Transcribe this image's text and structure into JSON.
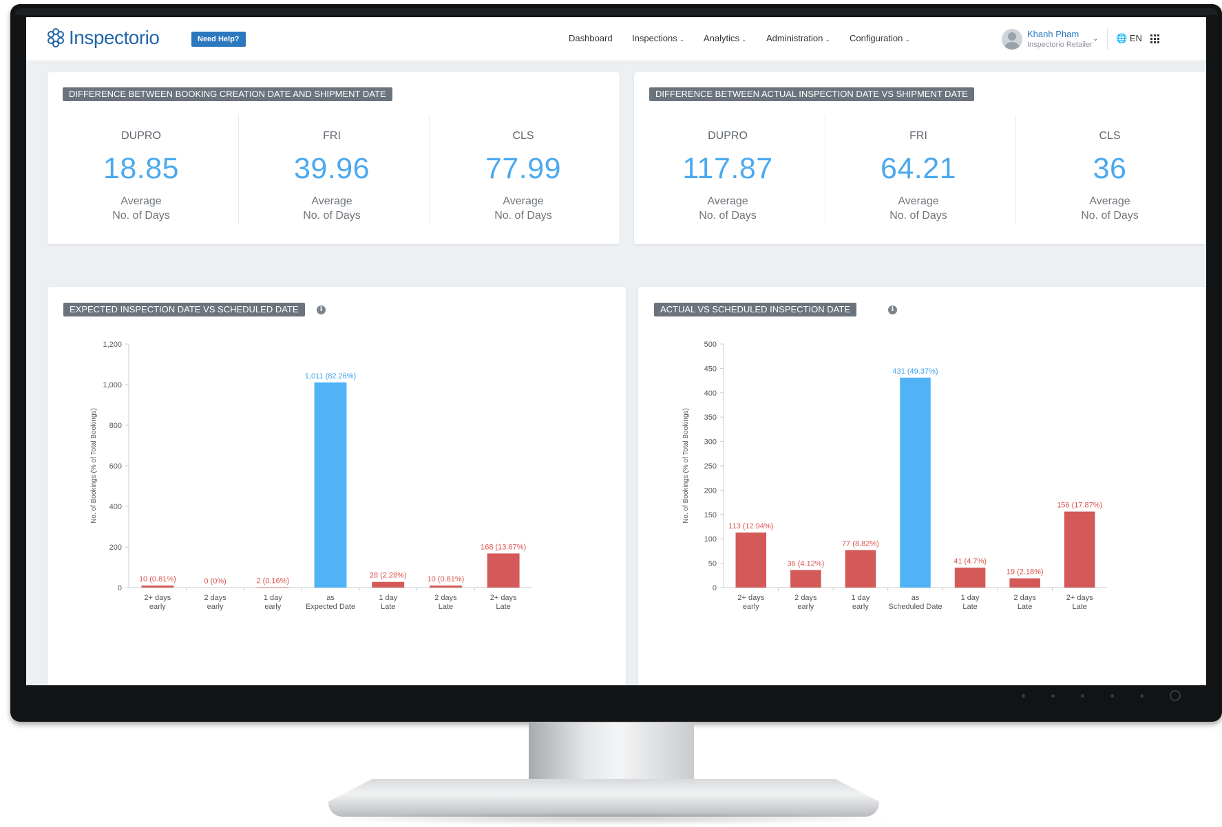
{
  "header": {
    "logo_text": "Inspectorio",
    "help_label": "Need Help?",
    "nav": [
      {
        "label": "Dashboard",
        "caret": false
      },
      {
        "label": "Inspections",
        "caret": true
      },
      {
        "label": "Analytics",
        "caret": true
      },
      {
        "label": "Administration",
        "caret": true
      },
      {
        "label": "Configuration",
        "caret": true
      }
    ],
    "user_name": "Khanh Pham",
    "user_role": "Inspectorio Retailer",
    "language": "EN"
  },
  "booking_card": {
    "title": "DIFFERENCE BETWEEN BOOKING CREATION DATE AND SHIPMENT DATE",
    "stats": [
      {
        "label": "DUPRO",
        "value": "18.85",
        "caption1": "Average",
        "caption2": "No. of Days"
      },
      {
        "label": "FRI",
        "value": "39.96",
        "caption1": "Average",
        "caption2": "No. of Days"
      },
      {
        "label": "CLS",
        "value": "77.99",
        "caption1": "Average",
        "caption2": "No. of Days"
      }
    ]
  },
  "actual_card": {
    "title": "DIFFERENCE BETWEEN ACTUAL INSPECTION DATE VS SHIPMENT DATE",
    "stats": [
      {
        "label": "DUPRO",
        "value": "117.87",
        "caption1": "Average",
        "caption2": "No. of Days"
      },
      {
        "label": "FRI",
        "value": "64.21",
        "caption1": "Average",
        "caption2": "No. of Days"
      },
      {
        "label": "CLS",
        "value": "36",
        "caption1": "Average",
        "caption2": "No. of Days"
      }
    ]
  },
  "colors": {
    "accent": "#4aa9ef",
    "bar_blue": "#4fb3f6",
    "bar_red": "#d35a58",
    "label_red": "#d9534f",
    "label_blue": "#3aa0ee"
  },
  "chart_data": [
    {
      "type": "bar",
      "title": "EXPECTED INSPECTION DATE VS SCHEDULED DATE",
      "ylabel": "No. of Bookings (% of Total Bookings)",
      "ylim": [
        0,
        1200
      ],
      "yticks": [
        0,
        200,
        400,
        600,
        800,
        1000,
        1200
      ],
      "ytick_labels": [
        "0",
        "200",
        "400",
        "600",
        "800",
        "1,000",
        "1,200"
      ],
      "categories": [
        [
          "2+ days",
          "early"
        ],
        [
          "2 days",
          "early"
        ],
        [
          "1 day",
          "early"
        ],
        [
          "as",
          "Expected Date"
        ],
        [
          "1 day",
          "Late"
        ],
        [
          "2 days",
          "Late"
        ],
        [
          "2+ days",
          "Late"
        ]
      ],
      "values": [
        10,
        0,
        2,
        1011,
        28,
        10,
        168
      ],
      "data_labels": [
        "10 (0.81%)",
        "0 (0%)",
        "2 (0.16%)",
        "1,011 (82.26%)",
        "28 (2.28%)",
        "10 (0.81%)",
        "168 (13.67%)"
      ],
      "highlight_index": 3,
      "grid": false
    },
    {
      "type": "bar",
      "title": "ACTUAL VS SCHEDULED INSPECTION DATE",
      "ylabel": "No. of Bookings (% of Total Bookings)",
      "ylim": [
        0,
        500
      ],
      "yticks": [
        0,
        50,
        100,
        150,
        200,
        250,
        300,
        350,
        400,
        450,
        500
      ],
      "ytick_labels": [
        "0",
        "50",
        "100",
        "150",
        "200",
        "250",
        "300",
        "350",
        "400",
        "450",
        "500"
      ],
      "categories": [
        [
          "2+ days",
          "early"
        ],
        [
          "2 days",
          "early"
        ],
        [
          "1 day",
          "early"
        ],
        [
          "as",
          "Scheduled Date"
        ],
        [
          "1 day",
          "Late"
        ],
        [
          "2 days",
          "Late"
        ],
        [
          "2+ days",
          "Late"
        ]
      ],
      "values": [
        113,
        36,
        77,
        431,
        41,
        19,
        156
      ],
      "data_labels": [
        "113 (12.94%)",
        "36 (4.12%)",
        "77 (8.82%)",
        "431 (49.37%)",
        "41 (4.7%)",
        "19 (2.18%)",
        "156 (17.87%)"
      ],
      "highlight_index": 3,
      "grid": false
    }
  ]
}
